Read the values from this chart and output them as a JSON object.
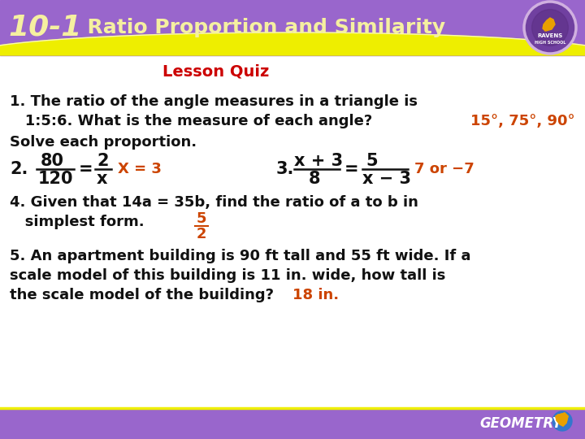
{
  "title_num": "10-1",
  "title_text": "  Ratio Proportion and Similarity",
  "subtitle": "Lesson Quiz",
  "header_bg": "#9966cc",
  "header_yellow": "#eeee00",
  "body_bg": "#ffffff",
  "footer_bg": "#9966cc",
  "footer_text": "GEOMETRY",
  "footer_text_color": "#ffffff",
  "title_color": "#f5f0a0",
  "subtitle_color": "#cc0000",
  "body_text_color": "#111111",
  "answer_color": "#cc4400",
  "q1_line1": "1. The ratio of the angle measures in a triangle is",
  "q1_line2": "   1:5:6. What is the measure of each angle?",
  "q1_answer": "15°, 75°, 90°",
  "solve_label": "Solve each proportion.",
  "q2_label": "2.",
  "q2_frac_num": "80",
  "q2_frac_den": "120",
  "q2_num2": "2",
  "q2_den2": "x",
  "q2_answer": "X = 3",
  "q3_label": "3.",
  "q3_frac_num": "x + 3",
  "q3_frac_den": "8",
  "q3_num2": "5",
  "q3_den2": "x − 3",
  "q3_answer": "7 or −7",
  "q4_line1": "4. Given that 14a = 35b, find the ratio of a to b in",
  "q4_line2": "   simplest form.",
  "q4_ans_num": "5",
  "q4_ans_den": "2",
  "q5_line1": "5. An apartment building is 90 ft tall and 55 ft wide. If a",
  "q5_line2": "scale model of this building is 11 in. wide, how tall is",
  "q5_line3": "the scale model of the building?",
  "q5_answer": "18 in.",
  "font_size_title_num": 26,
  "font_size_title": 18,
  "font_size_subtitle": 14,
  "font_size_body": 13,
  "font_size_footer": 12
}
